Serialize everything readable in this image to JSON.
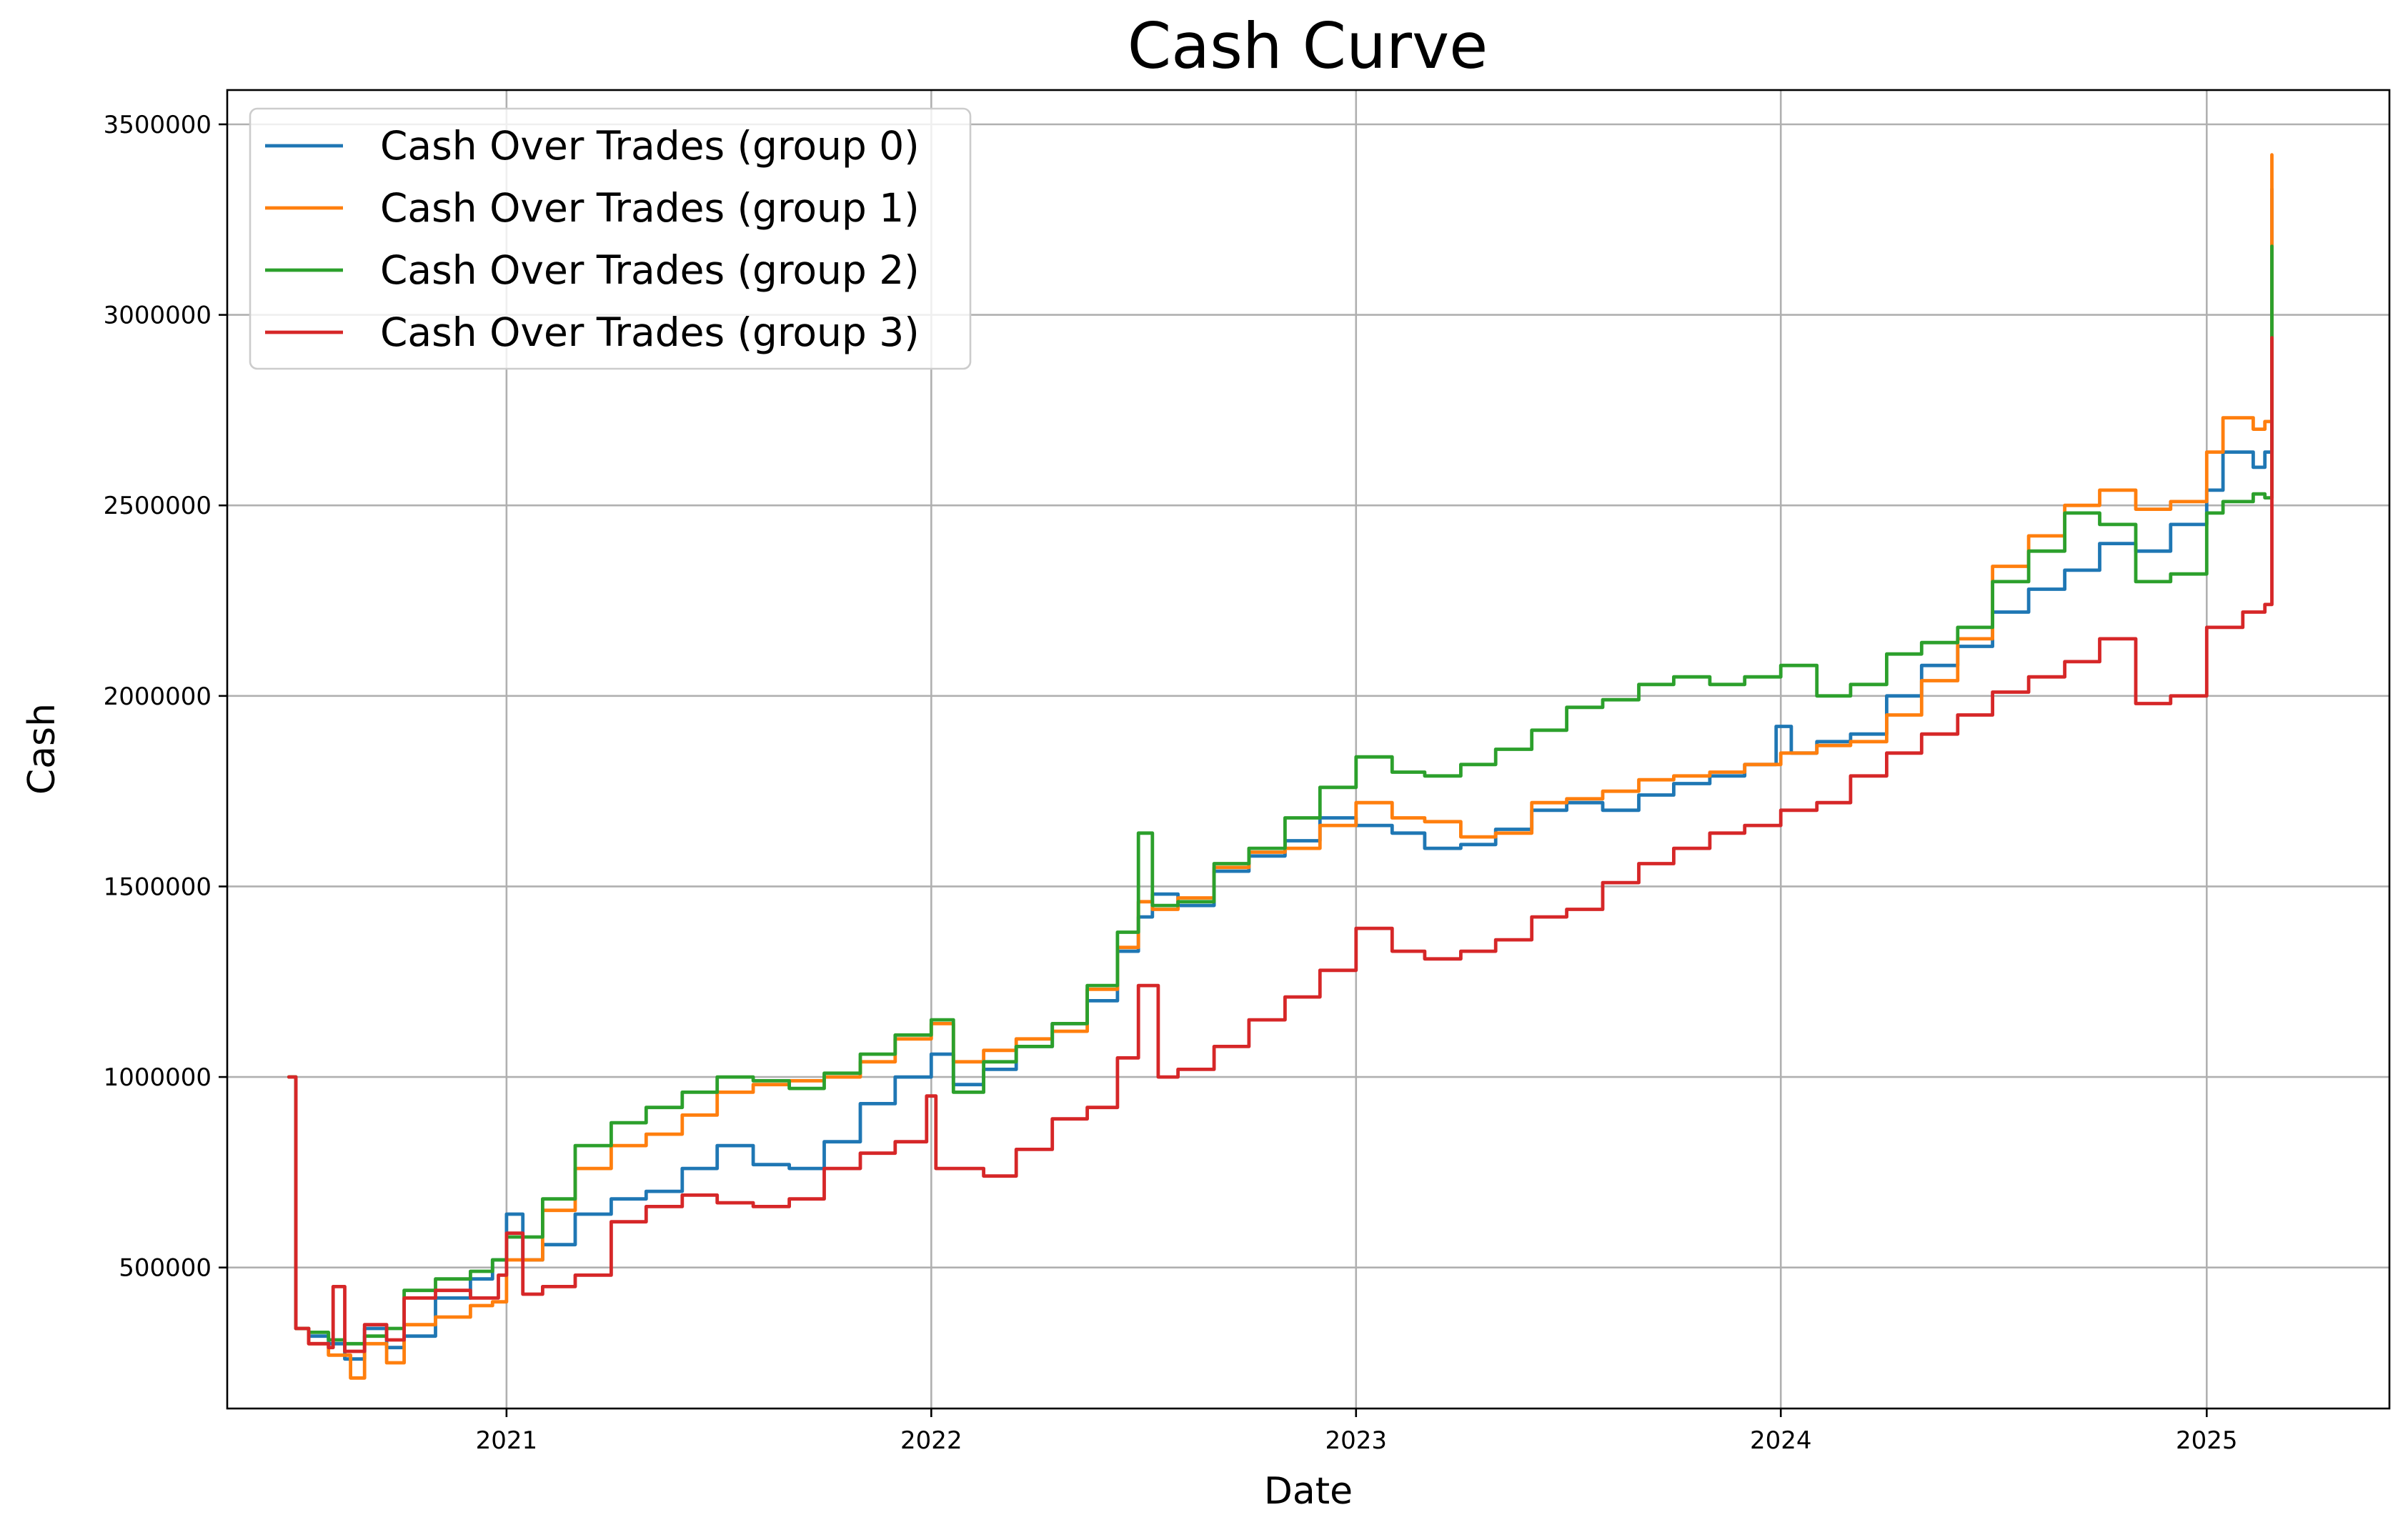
{
  "chart_data": {
    "type": "line",
    "title": "Cash Curve",
    "xlabel": "Date",
    "ylabel": "Cash",
    "x_ticks": [
      "2021",
      "2022",
      "2023",
      "2024",
      "2025"
    ],
    "y_ticks": [
      "500000",
      "1000000",
      "1500000",
      "2000000",
      "2500000",
      "3000000",
      "3500000"
    ],
    "xlim": [
      "2020-05-06",
      "2025-06-07"
    ],
    "ylim": [
      130000,
      3590000
    ],
    "grid": true,
    "legend_position": "upper-left",
    "series": [
      {
        "name": "Cash Over Trades (group 0)",
        "color": "#1f77b4",
        "points": [
          [
            "2020-06-28",
            1000000
          ],
          [
            "2020-07-04",
            340000
          ],
          [
            "2020-07-15",
            320000
          ],
          [
            "2020-08-01",
            300000
          ],
          [
            "2020-08-15",
            260000
          ],
          [
            "2020-09-01",
            340000
          ],
          [
            "2020-09-20",
            290000
          ],
          [
            "2020-10-05",
            320000
          ],
          [
            "2020-11-01",
            420000
          ],
          [
            "2020-12-01",
            470000
          ],
          [
            "2020-12-20",
            520000
          ],
          [
            "2021-01-01",
            640000
          ],
          [
            "2021-01-15",
            520000
          ],
          [
            "2021-02-01",
            560000
          ],
          [
            "2021-03-01",
            640000
          ],
          [
            "2021-04-01",
            680000
          ],
          [
            "2021-05-01",
            700000
          ],
          [
            "2021-06-01",
            760000
          ],
          [
            "2021-07-01",
            820000
          ],
          [
            "2021-08-01",
            770000
          ],
          [
            "2021-09-01",
            760000
          ],
          [
            "2021-10-01",
            830000
          ],
          [
            "2021-11-01",
            930000
          ],
          [
            "2021-12-01",
            1000000
          ],
          [
            "2022-01-01",
            1060000
          ],
          [
            "2022-01-20",
            980000
          ],
          [
            "2022-02-15",
            1020000
          ],
          [
            "2022-03-15",
            1080000
          ],
          [
            "2022-04-15",
            1140000
          ],
          [
            "2022-05-15",
            1200000
          ],
          [
            "2022-06-10",
            1330000
          ],
          [
            "2022-06-28",
            1420000
          ],
          [
            "2022-07-10",
            1480000
          ],
          [
            "2022-08-01",
            1450000
          ],
          [
            "2022-09-01",
            1540000
          ],
          [
            "2022-10-01",
            1580000
          ],
          [
            "2022-11-01",
            1620000
          ],
          [
            "2022-12-01",
            1680000
          ],
          [
            "2023-01-01",
            1660000
          ],
          [
            "2023-02-01",
            1640000
          ],
          [
            "2023-03-01",
            1600000
          ],
          [
            "2023-04-01",
            1610000
          ],
          [
            "2023-05-01",
            1650000
          ],
          [
            "2023-06-01",
            1700000
          ],
          [
            "2023-07-01",
            1720000
          ],
          [
            "2023-08-01",
            1700000
          ],
          [
            "2023-09-01",
            1740000
          ],
          [
            "2023-10-01",
            1770000
          ],
          [
            "2023-11-01",
            1790000
          ],
          [
            "2023-12-01",
            1820000
          ],
          [
            "2023-12-28",
            1920000
          ],
          [
            "2024-01-10",
            1850000
          ],
          [
            "2024-02-01",
            1880000
          ],
          [
            "2024-03-01",
            1900000
          ],
          [
            "2024-04-01",
            2000000
          ],
          [
            "2024-05-01",
            2080000
          ],
          [
            "2024-06-01",
            2130000
          ],
          [
            "2024-07-01",
            2220000
          ],
          [
            "2024-08-01",
            2280000
          ],
          [
            "2024-09-01",
            2330000
          ],
          [
            "2024-10-01",
            2400000
          ],
          [
            "2024-11-01",
            2380000
          ],
          [
            "2024-12-01",
            2450000
          ],
          [
            "2025-01-01",
            2540000
          ],
          [
            "2025-01-15",
            2640000
          ],
          [
            "2025-02-10",
            2600000
          ],
          [
            "2025-02-20",
            2640000
          ],
          [
            "2025-02-26",
            3330000
          ]
        ]
      },
      {
        "name": "Cash Over Trades (group 1)",
        "color": "#ff7f0e",
        "points": [
          [
            "2020-06-28",
            1000000
          ],
          [
            "2020-07-04",
            340000
          ],
          [
            "2020-07-15",
            300000
          ],
          [
            "2020-08-01",
            270000
          ],
          [
            "2020-08-20",
            210000
          ],
          [
            "2020-09-01",
            300000
          ],
          [
            "2020-09-20",
            250000
          ],
          [
            "2020-10-05",
            350000
          ],
          [
            "2020-11-01",
            370000
          ],
          [
            "2020-12-01",
            400000
          ],
          [
            "2020-12-20",
            410000
          ],
          [
            "2021-01-01",
            520000
          ],
          [
            "2021-02-01",
            650000
          ],
          [
            "2021-03-01",
            760000
          ],
          [
            "2021-04-01",
            820000
          ],
          [
            "2021-05-01",
            850000
          ],
          [
            "2021-06-01",
            900000
          ],
          [
            "2021-07-01",
            960000
          ],
          [
            "2021-08-01",
            980000
          ],
          [
            "2021-09-01",
            990000
          ],
          [
            "2021-10-01",
            1000000
          ],
          [
            "2021-11-01",
            1040000
          ],
          [
            "2021-12-01",
            1100000
          ],
          [
            "2022-01-01",
            1140000
          ],
          [
            "2022-01-20",
            1040000
          ],
          [
            "2022-02-15",
            1070000
          ],
          [
            "2022-03-15",
            1100000
          ],
          [
            "2022-04-15",
            1120000
          ],
          [
            "2022-05-15",
            1230000
          ],
          [
            "2022-06-10",
            1340000
          ],
          [
            "2022-06-28",
            1460000
          ],
          [
            "2022-07-10",
            1440000
          ],
          [
            "2022-08-01",
            1470000
          ],
          [
            "2022-09-01",
            1550000
          ],
          [
            "2022-10-01",
            1590000
          ],
          [
            "2022-11-01",
            1600000
          ],
          [
            "2022-12-01",
            1660000
          ],
          [
            "2023-01-01",
            1720000
          ],
          [
            "2023-02-01",
            1680000
          ],
          [
            "2023-03-01",
            1670000
          ],
          [
            "2023-04-01",
            1630000
          ],
          [
            "2023-05-01",
            1640000
          ],
          [
            "2023-06-01",
            1720000
          ],
          [
            "2023-07-01",
            1730000
          ],
          [
            "2023-08-01",
            1750000
          ],
          [
            "2023-09-01",
            1780000
          ],
          [
            "2023-10-01",
            1790000
          ],
          [
            "2023-11-01",
            1800000
          ],
          [
            "2023-12-01",
            1820000
          ],
          [
            "2024-01-01",
            1850000
          ],
          [
            "2024-02-01",
            1870000
          ],
          [
            "2024-03-01",
            1880000
          ],
          [
            "2024-04-01",
            1950000
          ],
          [
            "2024-05-01",
            2040000
          ],
          [
            "2024-06-01",
            2150000
          ],
          [
            "2024-07-01",
            2340000
          ],
          [
            "2024-08-01",
            2420000
          ],
          [
            "2024-09-01",
            2500000
          ],
          [
            "2024-10-01",
            2540000
          ],
          [
            "2024-11-01",
            2490000
          ],
          [
            "2024-12-01",
            2510000
          ],
          [
            "2025-01-01",
            2640000
          ],
          [
            "2025-01-15",
            2730000
          ],
          [
            "2025-02-10",
            2700000
          ],
          [
            "2025-02-20",
            2720000
          ],
          [
            "2025-02-26",
            3420000
          ]
        ]
      },
      {
        "name": "Cash Over Trades (group 2)",
        "color": "#2ca02c",
        "points": [
          [
            "2020-06-28",
            1000000
          ],
          [
            "2020-07-04",
            340000
          ],
          [
            "2020-07-15",
            330000
          ],
          [
            "2020-08-01",
            310000
          ],
          [
            "2020-08-15",
            300000
          ],
          [
            "2020-09-01",
            320000
          ],
          [
            "2020-09-20",
            340000
          ],
          [
            "2020-10-05",
            440000
          ],
          [
            "2020-11-01",
            470000
          ],
          [
            "2020-12-01",
            490000
          ],
          [
            "2020-12-20",
            520000
          ],
          [
            "2021-01-01",
            580000
          ],
          [
            "2021-02-01",
            680000
          ],
          [
            "2021-03-01",
            820000
          ],
          [
            "2021-04-01",
            880000
          ],
          [
            "2021-05-01",
            920000
          ],
          [
            "2021-06-01",
            960000
          ],
          [
            "2021-07-01",
            1000000
          ],
          [
            "2021-08-01",
            990000
          ],
          [
            "2021-09-01",
            970000
          ],
          [
            "2021-10-01",
            1010000
          ],
          [
            "2021-11-01",
            1060000
          ],
          [
            "2021-12-01",
            1110000
          ],
          [
            "2022-01-01",
            1150000
          ],
          [
            "2022-01-20",
            960000
          ],
          [
            "2022-02-15",
            1040000
          ],
          [
            "2022-03-15",
            1080000
          ],
          [
            "2022-04-15",
            1140000
          ],
          [
            "2022-05-15",
            1240000
          ],
          [
            "2022-06-10",
            1380000
          ],
          [
            "2022-06-28",
            1640000
          ],
          [
            "2022-07-10",
            1450000
          ],
          [
            "2022-08-01",
            1460000
          ],
          [
            "2022-09-01",
            1560000
          ],
          [
            "2022-10-01",
            1600000
          ],
          [
            "2022-11-01",
            1680000
          ],
          [
            "2022-12-01",
            1760000
          ],
          [
            "2023-01-01",
            1840000
          ],
          [
            "2023-02-01",
            1800000
          ],
          [
            "2023-03-01",
            1790000
          ],
          [
            "2023-04-01",
            1820000
          ],
          [
            "2023-05-01",
            1860000
          ],
          [
            "2023-06-01",
            1910000
          ],
          [
            "2023-07-01",
            1970000
          ],
          [
            "2023-08-01",
            1990000
          ],
          [
            "2023-09-01",
            2030000
          ],
          [
            "2023-10-01",
            2050000
          ],
          [
            "2023-11-01",
            2030000
          ],
          [
            "2023-12-01",
            2050000
          ],
          [
            "2024-01-01",
            2080000
          ],
          [
            "2024-02-01",
            2000000
          ],
          [
            "2024-03-01",
            2030000
          ],
          [
            "2024-04-01",
            2110000
          ],
          [
            "2024-05-01",
            2140000
          ],
          [
            "2024-06-01",
            2180000
          ],
          [
            "2024-07-01",
            2300000
          ],
          [
            "2024-08-01",
            2380000
          ],
          [
            "2024-09-01",
            2480000
          ],
          [
            "2024-10-01",
            2450000
          ],
          [
            "2024-11-01",
            2300000
          ],
          [
            "2024-12-01",
            2320000
          ],
          [
            "2025-01-01",
            2480000
          ],
          [
            "2025-01-15",
            2510000
          ],
          [
            "2025-02-10",
            2530000
          ],
          [
            "2025-02-20",
            2520000
          ],
          [
            "2025-02-26",
            3180000
          ]
        ]
      },
      {
        "name": "Cash Over Trades (group 3)",
        "color": "#d62728",
        "points": [
          [
            "2020-06-28",
            1000000
          ],
          [
            "2020-07-04",
            340000
          ],
          [
            "2020-07-15",
            300000
          ],
          [
            "2020-08-01",
            290000
          ],
          [
            "2020-08-05",
            450000
          ],
          [
            "2020-08-15",
            280000
          ],
          [
            "2020-09-01",
            350000
          ],
          [
            "2020-09-20",
            310000
          ],
          [
            "2020-10-05",
            420000
          ],
          [
            "2020-11-01",
            440000
          ],
          [
            "2020-12-01",
            420000
          ],
          [
            "2020-12-25",
            480000
          ],
          [
            "2021-01-01",
            590000
          ],
          [
            "2021-01-15",
            430000
          ],
          [
            "2021-02-01",
            450000
          ],
          [
            "2021-03-01",
            480000
          ],
          [
            "2021-04-01",
            620000
          ],
          [
            "2021-05-01",
            660000
          ],
          [
            "2021-06-01",
            690000
          ],
          [
            "2021-07-01",
            670000
          ],
          [
            "2021-08-01",
            660000
          ],
          [
            "2021-09-01",
            680000
          ],
          [
            "2021-10-01",
            760000
          ],
          [
            "2021-11-01",
            800000
          ],
          [
            "2021-12-01",
            830000
          ],
          [
            "2021-12-28",
            950000
          ],
          [
            "2022-01-05",
            760000
          ],
          [
            "2022-02-15",
            740000
          ],
          [
            "2022-03-15",
            810000
          ],
          [
            "2022-04-15",
            890000
          ],
          [
            "2022-05-15",
            920000
          ],
          [
            "2022-06-10",
            1050000
          ],
          [
            "2022-06-28",
            1240000
          ],
          [
            "2022-07-15",
            1000000
          ],
          [
            "2022-08-01",
            1020000
          ],
          [
            "2022-09-01",
            1080000
          ],
          [
            "2022-10-01",
            1150000
          ],
          [
            "2022-11-01",
            1210000
          ],
          [
            "2022-12-01",
            1280000
          ],
          [
            "2023-01-01",
            1390000
          ],
          [
            "2023-02-01",
            1330000
          ],
          [
            "2023-03-01",
            1310000
          ],
          [
            "2023-04-01",
            1330000
          ],
          [
            "2023-05-01",
            1360000
          ],
          [
            "2023-06-01",
            1420000
          ],
          [
            "2023-07-01",
            1440000
          ],
          [
            "2023-08-01",
            1510000
          ],
          [
            "2023-09-01",
            1560000
          ],
          [
            "2023-10-01",
            1600000
          ],
          [
            "2023-11-01",
            1640000
          ],
          [
            "2023-12-01",
            1660000
          ],
          [
            "2024-01-01",
            1700000
          ],
          [
            "2024-02-01",
            1720000
          ],
          [
            "2024-03-01",
            1790000
          ],
          [
            "2024-04-01",
            1850000
          ],
          [
            "2024-05-01",
            1900000
          ],
          [
            "2024-06-01",
            1950000
          ],
          [
            "2024-07-01",
            2010000
          ],
          [
            "2024-08-01",
            2050000
          ],
          [
            "2024-09-01",
            2090000
          ],
          [
            "2024-10-01",
            2150000
          ],
          [
            "2024-11-01",
            1980000
          ],
          [
            "2024-12-01",
            2000000
          ],
          [
            "2025-01-01",
            2180000
          ],
          [
            "2025-02-01",
            2220000
          ],
          [
            "2025-02-20",
            2240000
          ],
          [
            "2025-02-26",
            2940000
          ]
        ]
      }
    ]
  }
}
